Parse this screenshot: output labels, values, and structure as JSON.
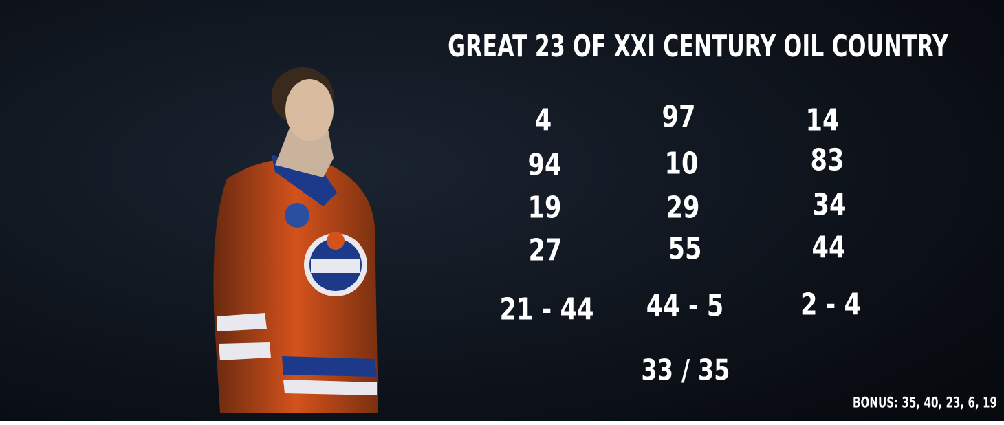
{
  "title": "GREAT 23 OF XXI CENTURY OIL COUNTRY",
  "columns": [
    {
      "numbers": [
        "4",
        "94",
        "19",
        "27"
      ],
      "pair": "21 - 44"
    },
    {
      "numbers": [
        "97",
        "10",
        "29",
        "55"
      ],
      "pair": "44 - 5"
    },
    {
      "numbers": [
        "14",
        "83",
        "34",
        "44"
      ],
      "pair": "2 - 4"
    }
  ],
  "total": "33 / 35",
  "bonus": "BONUS: 35, 40, 23, 6, 19"
}
